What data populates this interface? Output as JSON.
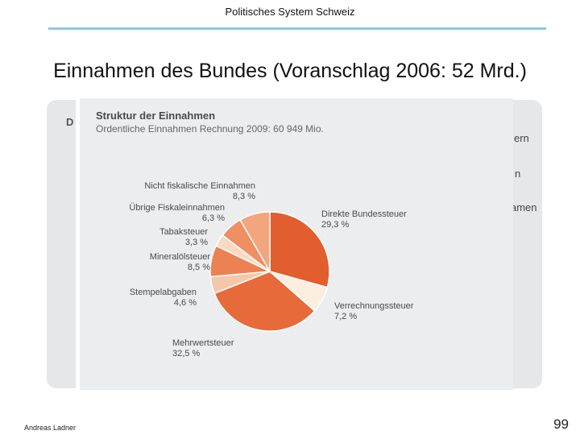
{
  "header": {
    "title": "Politisches System Schweiz"
  },
  "slide": {
    "title": "Einnahmen des Bundes (Voranschlag 2006: 52 Mrd.)"
  },
  "background_fragments": {
    "left_letter": "D",
    "right_1": "ern",
    "right_2": "n",
    "right_3": "amen"
  },
  "colors": {
    "accent_rule": "#8cc8e8",
    "panel": "#e6e7e9"
  },
  "chart_data": {
    "type": "pie",
    "title": "Struktur der Einnahmen",
    "subtitle": "Ordentliche Einnahmen Rechnung 2009: 60 949 Mio.",
    "slices": [
      {
        "label": "Direkte Bundessteuer",
        "value": 29.3,
        "value_label": "29,3 %",
        "color": "#e25e2e"
      },
      {
        "label": "Verrechnungssteuer",
        "value": 7.2,
        "value_label": "7,2 %",
        "color": "#fbeee0"
      },
      {
        "label": "Mehrwertsteuer",
        "value": 32.5,
        "value_label": "32,5 %",
        "color": "#e76a3b"
      },
      {
        "label": "Stempelabgaben",
        "value": 4.6,
        "value_label": "4,6 %",
        "color": "#f7c6a8"
      },
      {
        "label": "Mineralölsteuer",
        "value": 8.5,
        "value_label": "8,5 %",
        "color": "#ec8253"
      },
      {
        "label": "Tabaksteuer",
        "value": 3.3,
        "value_label": "3,3 %",
        "color": "#f9d9c4"
      },
      {
        "label": "Übrige Fiskaleinnahmen",
        "value": 6.3,
        "value_label": "6,3 %",
        "color": "#ef8f62"
      },
      {
        "label": "Nicht fiskalische Einnahmen",
        "value": 8.3,
        "value_label": "8,3 %",
        "color": "#f1a67d"
      }
    ]
  },
  "footer": {
    "author": "Andreas Ladner",
    "page": "99"
  }
}
